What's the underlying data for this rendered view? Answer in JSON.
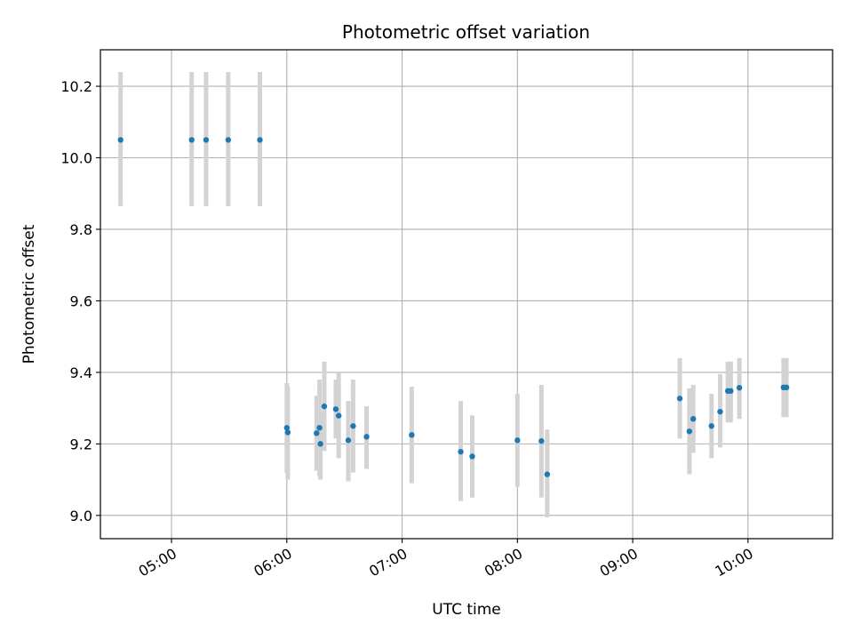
{
  "chart_data": {
    "type": "scatter",
    "title": "Photometric offset variation",
    "xlabel": "UTC time",
    "ylabel": "Photometric offset",
    "x_unit": "minutes since 00:00 UTC",
    "xlim": [
      263,
      644
    ],
    "ylim": [
      8.935,
      10.302
    ],
    "grid": true,
    "legend": "none",
    "colors": {
      "point": "#1f77b4",
      "errorbar": "#d3d3d3",
      "grid": "#b0b0b0",
      "axes": "#000000"
    },
    "x_ticks": [
      {
        "value": 300,
        "label": "05:00"
      },
      {
        "value": 360,
        "label": "06:00"
      },
      {
        "value": 420,
        "label": "07:00"
      },
      {
        "value": 480,
        "label": "08:00"
      },
      {
        "value": 540,
        "label": "09:00"
      },
      {
        "value": 600,
        "label": "10:00"
      }
    ],
    "y_ticks": [
      {
        "value": 9.0,
        "label": "9.0"
      },
      {
        "value": 9.2,
        "label": "9.2"
      },
      {
        "value": 9.4,
        "label": "9.4"
      },
      {
        "value": 9.6,
        "label": "9.6"
      },
      {
        "value": 9.8,
        "label": "9.8"
      },
      {
        "value": 10.0,
        "label": "10.0"
      },
      {
        "value": 10.2,
        "label": "10.2"
      }
    ],
    "points": [
      {
        "x": 273.5,
        "y": 10.05,
        "lo": 9.865,
        "hi": 10.24
      },
      {
        "x": 310.5,
        "y": 10.05,
        "lo": 9.865,
        "hi": 10.24
      },
      {
        "x": 318.0,
        "y": 10.05,
        "lo": 9.865,
        "hi": 10.24
      },
      {
        "x": 329.5,
        "y": 10.05,
        "lo": 9.865,
        "hi": 10.24
      },
      {
        "x": 346.0,
        "y": 10.05,
        "lo": 9.865,
        "hi": 10.24
      },
      {
        "x": 360.0,
        "y": 9.245,
        "lo": 9.12,
        "hi": 9.37
      },
      {
        "x": 360.5,
        "y": 9.232,
        "lo": 9.1,
        "hi": 9.36
      },
      {
        "x": 375.5,
        "y": 9.23,
        "lo": 9.125,
        "hi": 9.335
      },
      {
        "x": 377.0,
        "y": 9.245,
        "lo": 9.11,
        "hi": 9.38
      },
      {
        "x": 377.5,
        "y": 9.2,
        "lo": 9.1,
        "hi": 9.29
      },
      {
        "x": 379.5,
        "y": 9.305,
        "lo": 9.18,
        "hi": 9.43
      },
      {
        "x": 385.5,
        "y": 9.297,
        "lo": 9.215,
        "hi": 9.38
      },
      {
        "x": 387.0,
        "y": 9.279,
        "lo": 9.16,
        "hi": 9.4
      },
      {
        "x": 392.0,
        "y": 9.21,
        "lo": 9.095,
        "hi": 9.32
      },
      {
        "x": 394.5,
        "y": 9.25,
        "lo": 9.12,
        "hi": 9.38
      },
      {
        "x": 401.5,
        "y": 9.22,
        "lo": 9.13,
        "hi": 9.305
      },
      {
        "x": 425.0,
        "y": 9.225,
        "lo": 9.09,
        "hi": 9.36
      },
      {
        "x": 450.5,
        "y": 9.178,
        "lo": 9.04,
        "hi": 9.32
      },
      {
        "x": 456.5,
        "y": 9.165,
        "lo": 9.05,
        "hi": 9.28
      },
      {
        "x": 480.0,
        "y": 9.21,
        "lo": 9.08,
        "hi": 9.34
      },
      {
        "x": 492.5,
        "y": 9.208,
        "lo": 9.05,
        "hi": 9.365
      },
      {
        "x": 495.5,
        "y": 9.115,
        "lo": 8.995,
        "hi": 9.24
      },
      {
        "x": 564.5,
        "y": 9.327,
        "lo": 9.215,
        "hi": 9.44
      },
      {
        "x": 569.5,
        "y": 9.235,
        "lo": 9.115,
        "hi": 9.355
      },
      {
        "x": 571.5,
        "y": 9.27,
        "lo": 9.175,
        "hi": 9.365
      },
      {
        "x": 581.0,
        "y": 9.25,
        "lo": 9.16,
        "hi": 9.34
      },
      {
        "x": 585.5,
        "y": 9.29,
        "lo": 9.19,
        "hi": 9.395
      },
      {
        "x": 589.5,
        "y": 9.348,
        "lo": 9.26,
        "hi": 9.43
      },
      {
        "x": 591.0,
        "y": 9.348,
        "lo": 9.26,
        "hi": 9.43
      },
      {
        "x": 595.5,
        "y": 9.357,
        "lo": 9.27,
        "hi": 9.44
      },
      {
        "x": 618.5,
        "y": 9.358,
        "lo": 9.275,
        "hi": 9.44
      },
      {
        "x": 620.0,
        "y": 9.358,
        "lo": 9.275,
        "hi": 9.44
      }
    ]
  }
}
